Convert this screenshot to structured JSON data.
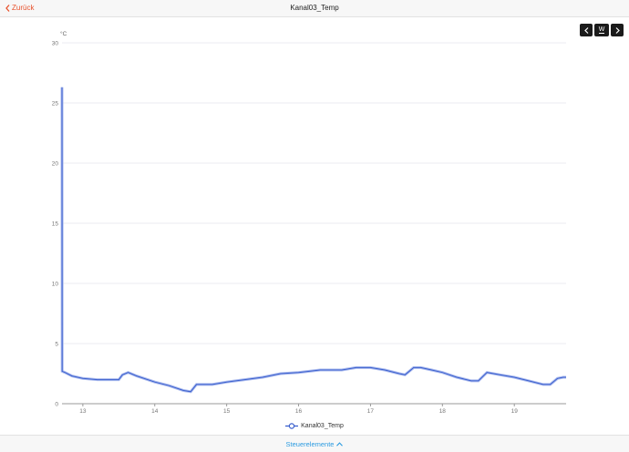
{
  "header": {
    "back_label": "Zurück",
    "title": "Kanal03_Temp"
  },
  "nav": {
    "prev_icon": "chevron-left-icon",
    "period_label": "W",
    "next_icon": "chevron-right-icon"
  },
  "legend": {
    "series_label": "Kanal03_Temp"
  },
  "footer": {
    "controls_label": "Steuerelemente",
    "controls_icon": "chevron-up-icon"
  },
  "colors": {
    "accent_back": "#e8512c",
    "line": "#3a5fcd",
    "line_halo": "#a9b9ee",
    "controls_link": "#2b9be0"
  },
  "chart_data": {
    "type": "line",
    "title": "Kanal03_Temp",
    "xlabel": "",
    "ylabel": "°C",
    "ylim": [
      0,
      30
    ],
    "xlim": [
      12.71,
      19.72
    ],
    "y_ticks": [
      0,
      5,
      10,
      15,
      20,
      25,
      30
    ],
    "x_ticks": [
      13,
      14,
      15,
      16,
      17,
      18,
      19
    ],
    "grid": true,
    "legend_position": "bottom",
    "series": [
      {
        "name": "Kanal03_Temp",
        "x": [
          12.71,
          12.712,
          12.75,
          12.85,
          13.0,
          13.2,
          13.5,
          13.55,
          13.63,
          13.75,
          14.0,
          14.2,
          14.4,
          14.5,
          14.58,
          14.8,
          15.0,
          15.25,
          15.5,
          15.75,
          16.0,
          16.3,
          16.6,
          16.8,
          17.0,
          17.2,
          17.4,
          17.48,
          17.6,
          17.7,
          17.85,
          18.0,
          18.2,
          18.4,
          18.5,
          18.62,
          18.8,
          19.0,
          19.2,
          19.4,
          19.5,
          19.6,
          19.68,
          19.72
        ],
        "values": [
          26.3,
          2.7,
          2.6,
          2.3,
          2.1,
          2.0,
          2.0,
          2.4,
          2.6,
          2.3,
          1.8,
          1.5,
          1.1,
          1.0,
          1.6,
          1.6,
          1.8,
          2.0,
          2.2,
          2.5,
          2.6,
          2.8,
          2.8,
          3.0,
          3.0,
          2.8,
          2.5,
          2.4,
          3.0,
          3.0,
          2.8,
          2.6,
          2.2,
          1.9,
          1.9,
          2.6,
          2.4,
          2.2,
          1.9,
          1.6,
          1.6,
          2.1,
          2.2,
          2.2
        ]
      }
    ]
  }
}
